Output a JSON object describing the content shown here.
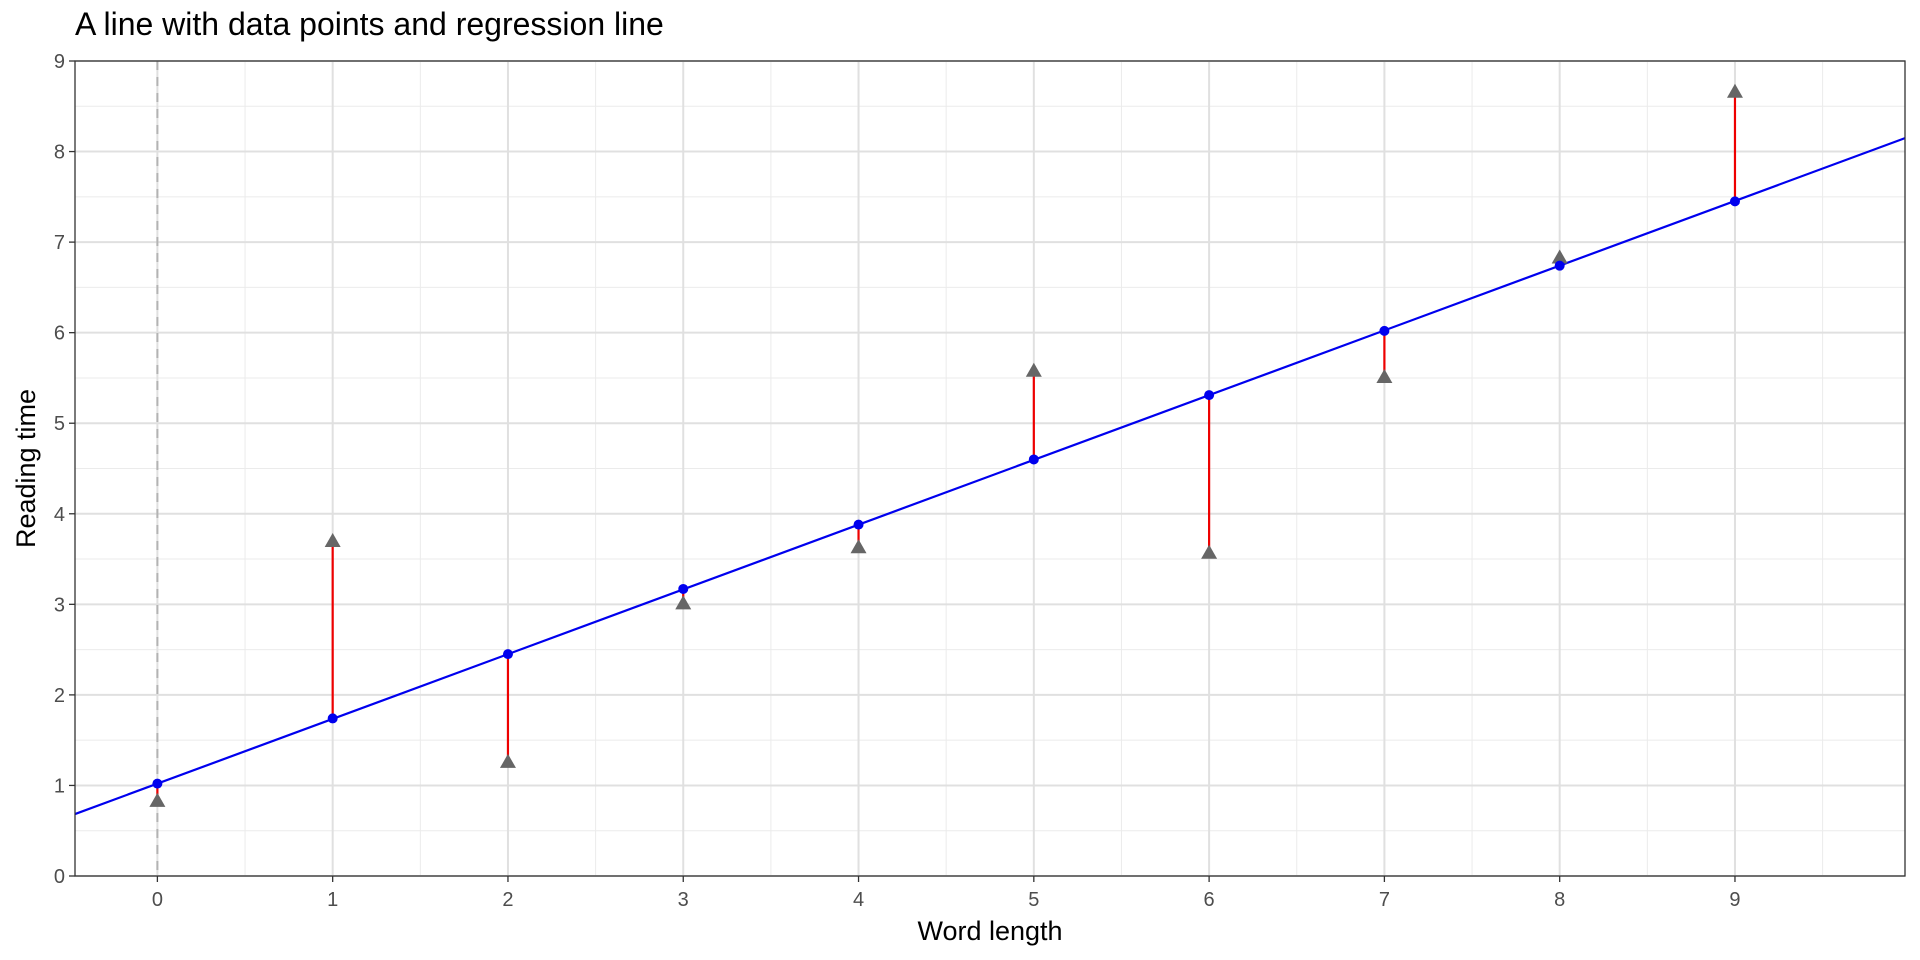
{
  "chart_data": {
    "type": "scatter",
    "title": "A line with data points and regression line",
    "xlabel": "Word length",
    "ylabel": "Reading time",
    "xlim": [
      -0.47,
      9.97
    ],
    "ylim": [
      0,
      9
    ],
    "x_ticks": [
      "0",
      "1",
      "2",
      "3",
      "4",
      "5",
      "6",
      "7",
      "8",
      "9"
    ],
    "y_ticks": [
      "0",
      "1",
      "2",
      "3",
      "4",
      "5",
      "6",
      "7",
      "8",
      "9"
    ],
    "grid": true,
    "vertical_reference_line": {
      "x": 0,
      "style": "dashed",
      "color": "#b3b3b3"
    },
    "regression_line": {
      "intercept": 1.02,
      "slope": 0.715,
      "color": "#0000ee"
    },
    "fitted_color": "#0000ee",
    "observed_color": "#666666",
    "residual_color": "#ee0000",
    "x": [
      0,
      1,
      2,
      3,
      4,
      5,
      6,
      7,
      8,
      9
    ],
    "observed": [
      0.83,
      3.7,
      1.26,
      3.01,
      3.63,
      5.58,
      3.57,
      5.51,
      6.83,
      8.66
    ],
    "fitted": [
      1.02,
      1.74,
      2.45,
      3.17,
      3.88,
      4.6,
      5.31,
      6.02,
      6.74,
      7.45
    ]
  }
}
